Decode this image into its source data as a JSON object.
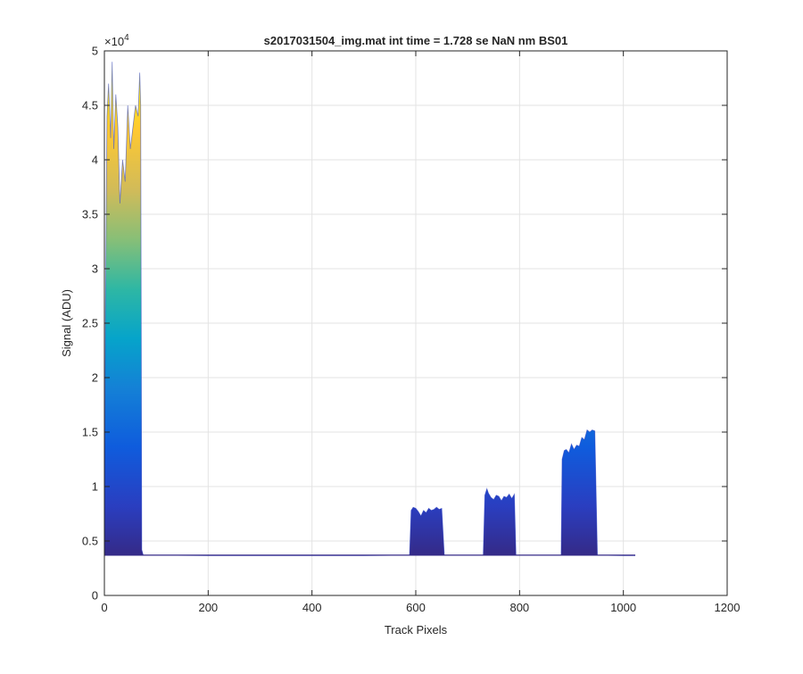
{
  "chart_data": {
    "type": "area",
    "title": "s2017031504_img.mat int time = 1.728 se  NaN nm BS01",
    "xlabel": "Track Pixels",
    "ylabel": "Signal (ADU)",
    "xlim": [
      0,
      1200
    ],
    "ylim": [
      0,
      50000
    ],
    "x_ticks": [
      0,
      200,
      400,
      600,
      800,
      1000,
      1200
    ],
    "x_tick_labels": [
      "0",
      "200",
      "400",
      "600",
      "800",
      "1000",
      "1200"
    ],
    "y_ticks": [
      0,
      5000,
      10000,
      15000,
      20000,
      25000,
      30000,
      35000,
      40000,
      45000,
      50000
    ],
    "y_tick_labels": [
      "0",
      "0.5",
      "1",
      "1.5",
      "2",
      "2.5",
      "3",
      "3.5",
      "4",
      "4.5",
      "5"
    ],
    "y_exponent_label": "×10",
    "y_exponent_power": "4",
    "grid": true,
    "colormap": "parula",
    "baseline": 3700,
    "series": [
      {
        "x": [
          0,
          2,
          5,
          8,
          12,
          15,
          18,
          22,
          26,
          30,
          35,
          40,
          45,
          50,
          55,
          60,
          65,
          68,
          70,
          72,
          75,
          80,
          100,
          200,
          300,
          400,
          500,
          588,
          591,
          595,
          600,
          605,
          610,
          615,
          620,
          625,
          630,
          635,
          640,
          645,
          650,
          655,
          700,
          730,
          733,
          737,
          740,
          745,
          750,
          755,
          760,
          765,
          770,
          775,
          780,
          785,
          790,
          793,
          798,
          850,
          880,
          882,
          886,
          890,
          895,
          900,
          905,
          910,
          915,
          920,
          925,
          930,
          935,
          940,
          945,
          950,
          1000,
          1023
        ],
        "y": [
          3700,
          26000,
          44000,
          47000,
          42000,
          49000,
          41000,
          46000,
          43000,
          36000,
          40000,
          38000,
          45000,
          41000,
          43000,
          45000,
          44000,
          48000,
          45000,
          4200,
          3700,
          3700,
          3700,
          3650,
          3650,
          3650,
          3650,
          3700,
          7800,
          8100,
          8000,
          7700,
          7300,
          7800,
          7600,
          8000,
          7800,
          7900,
          8100,
          7900,
          8000,
          3700,
          3700,
          3700,
          9200,
          9800,
          9400,
          9000,
          8800,
          9200,
          9100,
          8700,
          9100,
          9000,
          9300,
          8900,
          9300,
          3700,
          3700,
          3700,
          3700,
          12500,
          13300,
          13400,
          13100,
          13900,
          13400,
          13800,
          13700,
          14500,
          14300,
          15200,
          15000,
          15200,
          15100,
          3700,
          3650,
          3650
        ]
      }
    ]
  }
}
